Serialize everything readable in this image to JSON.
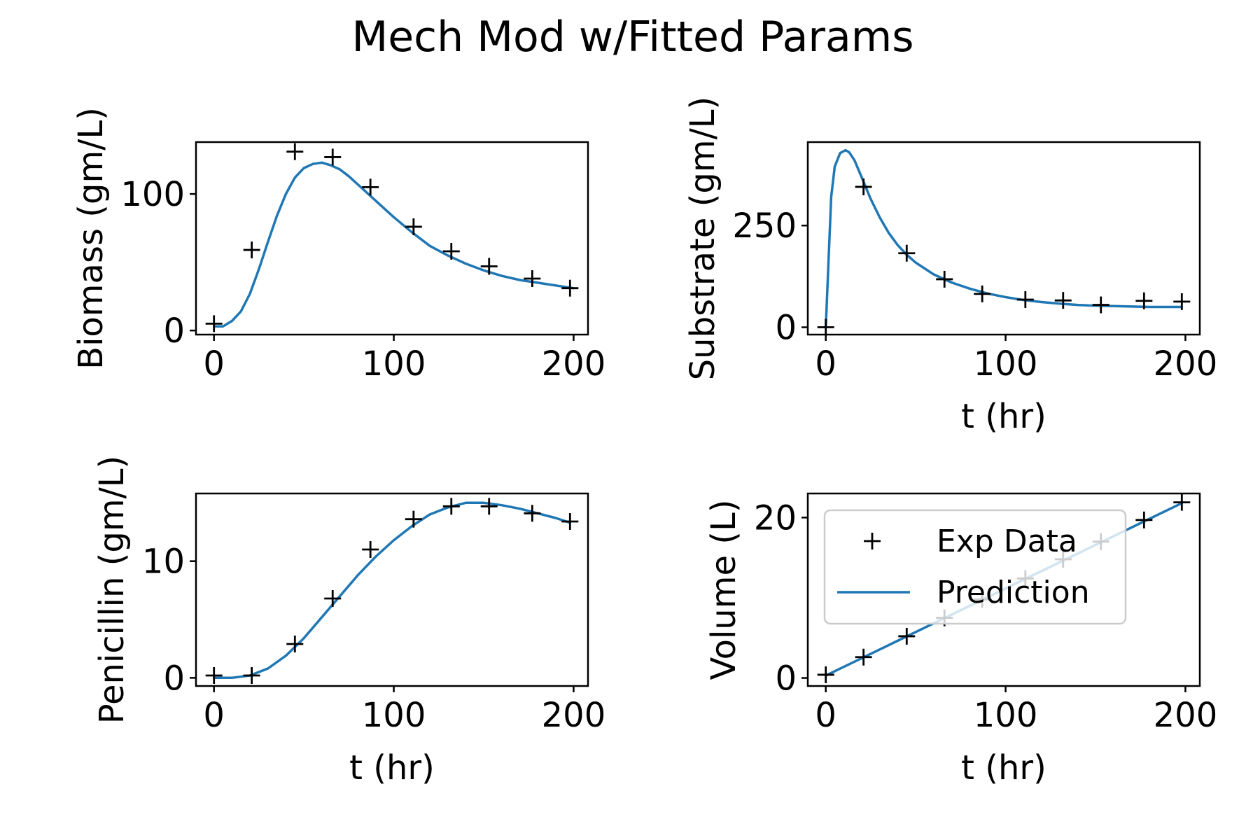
{
  "figure": {
    "title": "Mech Mod w/Fitted Params"
  },
  "colors": {
    "prediction": "#1f77b4",
    "exp_data": "#000000",
    "legend_border": "#cccccc"
  },
  "legend": {
    "placement": "upper-left of Volume panel",
    "entries": [
      {
        "label": "Exp Data",
        "marker": "plus"
      },
      {
        "label": "Prediction",
        "marker": "line"
      }
    ]
  },
  "chart_data": [
    {
      "type": "line",
      "id": "biomass",
      "title": "",
      "xlabel": "",
      "ylabel": "Biomass (gm/L)",
      "xlim": [
        -10,
        208
      ],
      "ylim": [
        -3,
        138
      ],
      "xticks": [
        0,
        100,
        200
      ],
      "yticks": [
        0,
        100
      ],
      "grid": false,
      "series": [
        {
          "name": "Exp Data",
          "kind": "scatter",
          "x": [
            0,
            21,
            45,
            66,
            87,
            111,
            132,
            153,
            177,
            198
          ],
          "y": [
            5,
            59,
            131,
            127,
            105,
            76,
            58,
            47,
            38,
            31
          ]
        },
        {
          "name": "Prediction",
          "kind": "line",
          "x": [
            0,
            5,
            10,
            15,
            20,
            25,
            30,
            35,
            40,
            45,
            50,
            55,
            60,
            65,
            70,
            75,
            80,
            90,
            100,
            110,
            120,
            130,
            140,
            150,
            160,
            170,
            180,
            190,
            200
          ],
          "y": [
            3,
            3,
            7,
            14,
            27,
            45,
            65,
            84,
            100,
            112,
            119,
            122,
            123,
            121,
            118,
            113,
            107,
            95,
            83,
            72,
            62,
            55,
            49,
            44,
            40,
            37,
            35,
            33,
            31
          ]
        }
      ]
    },
    {
      "type": "line",
      "id": "substrate",
      "title": "",
      "xlabel": "t (hr)",
      "ylabel": "Substrate (gm/L)",
      "xlim": [
        -10,
        208
      ],
      "ylim": [
        -18,
        455
      ],
      "xticks": [
        0,
        100,
        200
      ],
      "yticks": [
        0,
        250
      ],
      "grid": false,
      "series": [
        {
          "name": "Exp Data",
          "kind": "scatter",
          "x": [
            0,
            21,
            45,
            66,
            87,
            111,
            132,
            153,
            177,
            198
          ],
          "y": [
            0,
            345,
            182,
            118,
            82,
            68,
            66,
            55,
            65,
            63
          ]
        },
        {
          "name": "Prediction",
          "kind": "line",
          "x": [
            0,
            3,
            5,
            8,
            11,
            13,
            16,
            20,
            25,
            30,
            35,
            40,
            45,
            50,
            60,
            70,
            80,
            90,
            100,
            110,
            120,
            130,
            140,
            150,
            160,
            170,
            180,
            190,
            198
          ],
          "y": [
            0,
            320,
            395,
            428,
            435,
            430,
            410,
            368,
            315,
            270,
            232,
            202,
            178,
            159,
            130,
            110,
            95,
            83,
            74,
            67,
            62,
            58,
            55,
            53,
            52,
            51,
            50,
            50,
            50
          ]
        }
      ]
    },
    {
      "type": "line",
      "id": "penicillin",
      "title": "",
      "xlabel": "t (hr)",
      "ylabel": "Penicillin (gm/L)",
      "xlim": [
        -10,
        208
      ],
      "ylim": [
        -0.7,
        15.8
      ],
      "xticks": [
        0,
        100,
        200
      ],
      "yticks": [
        0,
        10
      ],
      "grid": false,
      "series": [
        {
          "name": "Exp Data",
          "kind": "scatter",
          "x": [
            0,
            21,
            45,
            66,
            87,
            111,
            132,
            153,
            177,
            198
          ],
          "y": [
            0.2,
            0.2,
            2.9,
            6.8,
            11.0,
            13.6,
            14.7,
            14.7,
            14.1,
            13.4
          ]
        },
        {
          "name": "Prediction",
          "kind": "line",
          "x": [
            0,
            10,
            20,
            30,
            40,
            50,
            60,
            70,
            80,
            90,
            100,
            110,
            120,
            130,
            140,
            150,
            160,
            170,
            180,
            190,
            198
          ],
          "y": [
            0,
            0,
            0.2,
            0.8,
            1.9,
            3.4,
            5.2,
            7.0,
            8.8,
            10.4,
            11.8,
            13.0,
            14.0,
            14.6,
            15.0,
            15.0,
            14.8,
            14.5,
            14.1,
            13.7,
            13.3
          ]
        }
      ]
    },
    {
      "type": "line",
      "id": "volume",
      "title": "",
      "xlabel": "t (hr)",
      "ylabel": "Volume (L)",
      "xlim": [
        -10,
        208
      ],
      "ylim": [
        -1,
        23
      ],
      "xticks": [
        0,
        100,
        200
      ],
      "yticks": [
        0,
        20
      ],
      "grid": false,
      "series": [
        {
          "name": "Exp Data",
          "kind": "scatter",
          "x": [
            0,
            21,
            45,
            66,
            87,
            111,
            132,
            153,
            177,
            198
          ],
          "y": [
            0.4,
            2.6,
            5.2,
            7.5,
            9.8,
            12.4,
            14.8,
            17.0,
            19.7,
            21.9
          ]
        },
        {
          "name": "Prediction",
          "kind": "line",
          "x": [
            0,
            198
          ],
          "y": [
            0.3,
            21.8
          ]
        }
      ]
    }
  ]
}
